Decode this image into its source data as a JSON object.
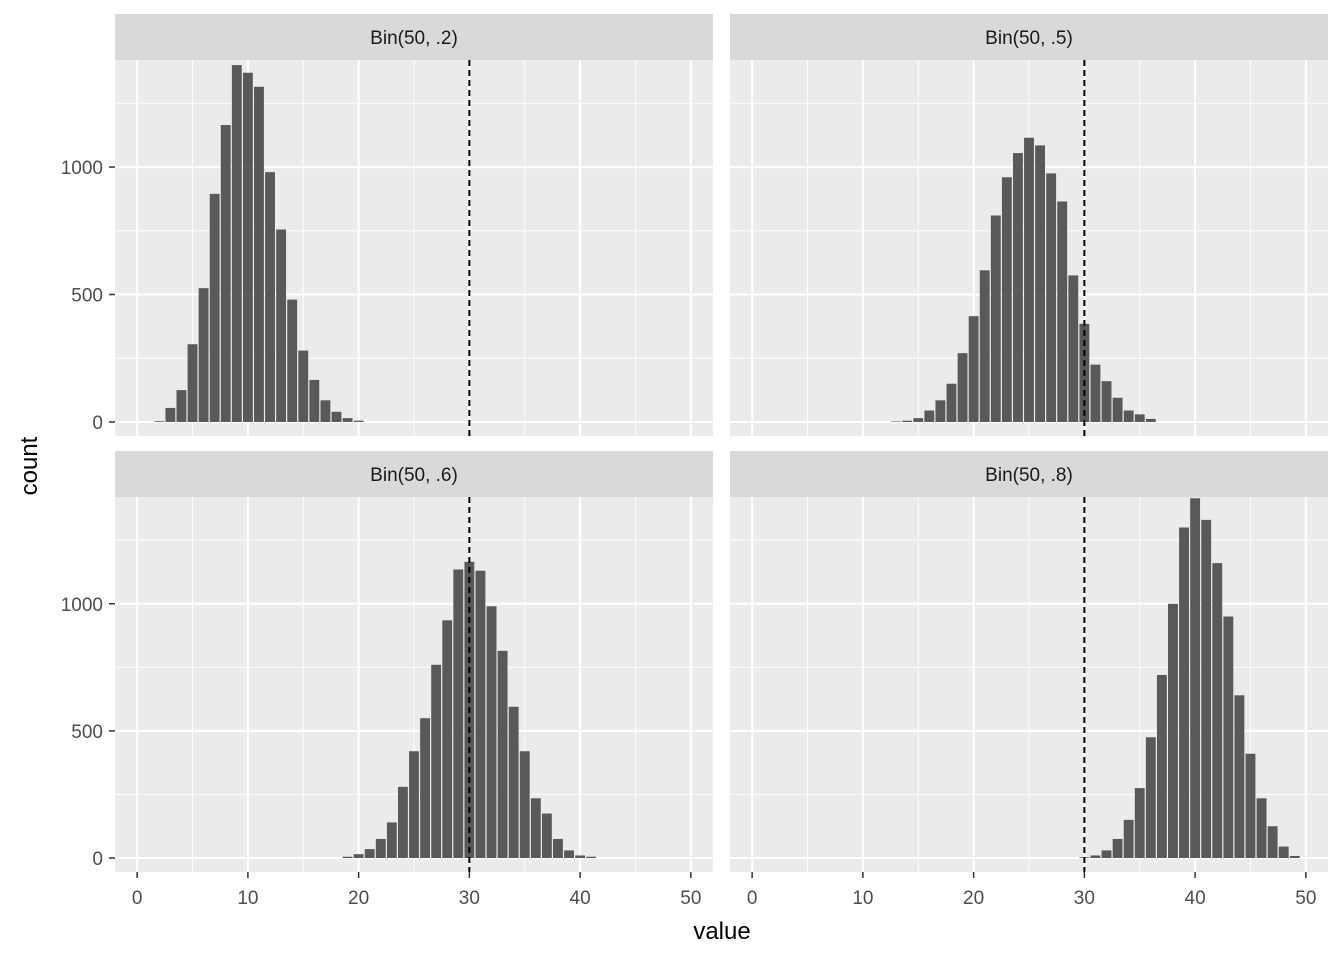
{
  "chart_data": {
    "type": "bar",
    "layout": "facet-grid 2x2",
    "xlabel": "value",
    "ylabel": "count",
    "xlim": [
      -2,
      52
    ],
    "ylim": [
      -55,
      1420
    ],
    "x_ticks": [
      0,
      10,
      20,
      30,
      40,
      50
    ],
    "y_ticks": [
      0,
      500,
      1000
    ],
    "reference_line": {
      "x": 30,
      "style": "dashed"
    },
    "grid": true,
    "colors": {
      "bar": "#595959",
      "panel_background": "#ebebeb",
      "strip_background": "#d9d9d9",
      "grid": "#ffffff",
      "reference_line": "#000000"
    },
    "panels": [
      {
        "title": "Bin(50, .2)",
        "bars": [
          {
            "x": 2,
            "count": 3
          },
          {
            "x": 3,
            "count": 55
          },
          {
            "x": 4,
            "count": 125
          },
          {
            "x": 5,
            "count": 305
          },
          {
            "x": 6,
            "count": 525
          },
          {
            "x": 7,
            "count": 895
          },
          {
            "x": 8,
            "count": 1165
          },
          {
            "x": 9,
            "count": 1400
          },
          {
            "x": 10,
            "count": 1370
          },
          {
            "x": 11,
            "count": 1315
          },
          {
            "x": 12,
            "count": 980
          },
          {
            "x": 13,
            "count": 755
          },
          {
            "x": 14,
            "count": 480
          },
          {
            "x": 15,
            "count": 280
          },
          {
            "x": 16,
            "count": 165
          },
          {
            "x": 17,
            "count": 85
          },
          {
            "x": 18,
            "count": 40
          },
          {
            "x": 19,
            "count": 15
          },
          {
            "x": 20,
            "count": 5
          }
        ]
      },
      {
        "title": "Bin(50, .5)",
        "bars": [
          {
            "x": 13,
            "count": 2
          },
          {
            "x": 14,
            "count": 5
          },
          {
            "x": 15,
            "count": 15
          },
          {
            "x": 16,
            "count": 45
          },
          {
            "x": 17,
            "count": 85
          },
          {
            "x": 18,
            "count": 150
          },
          {
            "x": 19,
            "count": 270
          },
          {
            "x": 20,
            "count": 415
          },
          {
            "x": 21,
            "count": 595
          },
          {
            "x": 22,
            "count": 810
          },
          {
            "x": 23,
            "count": 960
          },
          {
            "x": 24,
            "count": 1055
          },
          {
            "x": 25,
            "count": 1115
          },
          {
            "x": 26,
            "count": 1085
          },
          {
            "x": 27,
            "count": 975
          },
          {
            "x": 28,
            "count": 865
          },
          {
            "x": 29,
            "count": 575
          },
          {
            "x": 30,
            "count": 385
          },
          {
            "x": 31,
            "count": 225
          },
          {
            "x": 32,
            "count": 160
          },
          {
            "x": 33,
            "count": 95
          },
          {
            "x": 34,
            "count": 45
          },
          {
            "x": 35,
            "count": 30
          },
          {
            "x": 36,
            "count": 12
          }
        ]
      },
      {
        "title": "Bin(50, .6)",
        "bars": [
          {
            "x": 19,
            "count": 5
          },
          {
            "x": 20,
            "count": 15
          },
          {
            "x": 21,
            "count": 35
          },
          {
            "x": 22,
            "count": 75
          },
          {
            "x": 23,
            "count": 140
          },
          {
            "x": 24,
            "count": 280
          },
          {
            "x": 25,
            "count": 420
          },
          {
            "x": 26,
            "count": 550
          },
          {
            "x": 27,
            "count": 760
          },
          {
            "x": 28,
            "count": 935
          },
          {
            "x": 29,
            "count": 1135
          },
          {
            "x": 30,
            "count": 1165
          },
          {
            "x": 31,
            "count": 1130
          },
          {
            "x": 32,
            "count": 990
          },
          {
            "x": 33,
            "count": 815
          },
          {
            "x": 34,
            "count": 595
          },
          {
            "x": 35,
            "count": 420
          },
          {
            "x": 36,
            "count": 235
          },
          {
            "x": 37,
            "count": 175
          },
          {
            "x": 38,
            "count": 75
          },
          {
            "x": 39,
            "count": 30
          },
          {
            "x": 40,
            "count": 10
          },
          {
            "x": 41,
            "count": 5
          }
        ]
      },
      {
        "title": "Bin(50, .8)",
        "bars": [
          {
            "x": 30,
            "count": 3
          },
          {
            "x": 31,
            "count": 10
          },
          {
            "x": 32,
            "count": 30
          },
          {
            "x": 33,
            "count": 75
          },
          {
            "x": 34,
            "count": 150
          },
          {
            "x": 35,
            "count": 275
          },
          {
            "x": 36,
            "count": 475
          },
          {
            "x": 37,
            "count": 720
          },
          {
            "x": 38,
            "count": 1000
          },
          {
            "x": 39,
            "count": 1300
          },
          {
            "x": 40,
            "count": 1415
          },
          {
            "x": 41,
            "count": 1330
          },
          {
            "x": 42,
            "count": 1160
          },
          {
            "x": 43,
            "count": 950
          },
          {
            "x": 44,
            "count": 640
          },
          {
            "x": 45,
            "count": 410
          },
          {
            "x": 46,
            "count": 235
          },
          {
            "x": 47,
            "count": 125
          },
          {
            "x": 48,
            "count": 45
          },
          {
            "x": 49,
            "count": 8
          }
        ]
      }
    ]
  }
}
